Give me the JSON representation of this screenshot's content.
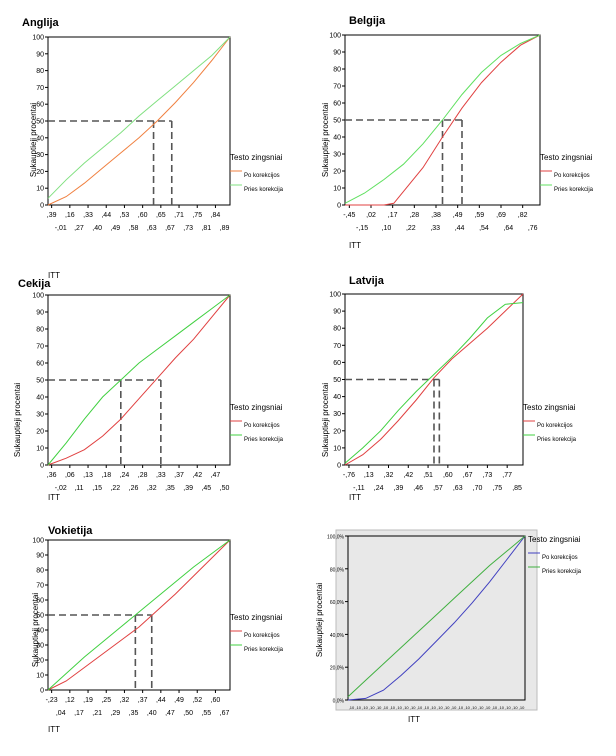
{
  "chart_data": [
    {
      "type": "line",
      "title": "Anglija",
      "ylabel": "Sukauptieji procentai",
      "xlabel": "ITT",
      "ylim": [
        0,
        100
      ],
      "yticks": [
        0,
        10,
        20,
        30,
        40,
        50,
        60,
        70,
        80,
        90,
        100
      ],
      "xticks_top": [
        ",39",
        ",16",
        ",33",
        ",44",
        ",53",
        ",60",
        ",65",
        ",71",
        ",75",
        ",84"
      ],
      "xticks_bottom": [
        "-,01",
        ",27",
        ",40",
        ",49",
        ",58",
        ",63",
        ",67",
        ",73",
        ",81",
        ",89"
      ],
      "legend_title": "Testo zingsniai",
      "series": [
        {
          "name": "Po korekcijos",
          "color": "#f08040",
          "x": [
            0,
            0.1,
            0.2,
            0.3,
            0.4,
            0.5,
            0.6,
            0.7,
            0.8,
            0.9,
            1
          ],
          "values": [
            0,
            5,
            13,
            22,
            31,
            40,
            50,
            61,
            73,
            86,
            100
          ]
        },
        {
          "name": "Pries korekcija",
          "color": "#80e080",
          "x": [
            0,
            0.1,
            0.2,
            0.3,
            0.4,
            0.5,
            0.6,
            0.7,
            0.8,
            0.9,
            1
          ],
          "values": [
            4,
            15,
            25,
            34,
            43,
            53,
            62,
            71,
            80,
            89,
            100
          ]
        }
      ],
      "median_x": [
        0.58,
        0.68
      ],
      "median_y": 50
    },
    {
      "type": "line",
      "title": "Belgija",
      "ylabel": "Sukauptieji procentai",
      "xlabel": "ITT",
      "ylim": [
        0,
        100
      ],
      "yticks": [
        0,
        10,
        20,
        30,
        40,
        50,
        60,
        70,
        80,
        90,
        100
      ],
      "xticks_top": [
        "-,45",
        ",02",
        ",17",
        ",28",
        ",38",
        ",49",
        ",59",
        ",69",
        ",82"
      ],
      "xticks_bottom": [
        "-,15",
        ",10",
        ",22",
        ",33",
        ",44",
        ",54",
        ",64",
        ",76"
      ],
      "legend_title": "Testo zingsniai",
      "series": [
        {
          "name": "Po korekcijos",
          "color": "#e04040",
          "x": [
            0,
            0.1,
            0.2,
            0.25,
            0.3,
            0.4,
            0.5,
            0.6,
            0.7,
            0.8,
            0.9,
            1
          ],
          "values": [
            0,
            0,
            0,
            1,
            8,
            22,
            40,
            57,
            72,
            84,
            94,
            100
          ]
        },
        {
          "name": "Pries korekcija",
          "color": "#60e060",
          "x": [
            0,
            0.1,
            0.2,
            0.3,
            0.4,
            0.5,
            0.6,
            0.7,
            0.8,
            0.9,
            1
          ],
          "values": [
            1,
            7,
            15,
            24,
            36,
            50,
            65,
            78,
            88,
            95,
            100
          ]
        }
      ],
      "median_x": [
        0.5,
        0.6
      ],
      "median_y": 50
    },
    {
      "type": "line",
      "title": "Cekija",
      "ylabel": "Sukauptieji procentai",
      "xlabel": "ITT",
      "ylim": [
        0,
        100
      ],
      "yticks": [
        0,
        10,
        20,
        30,
        40,
        50,
        60,
        70,
        80,
        90,
        100
      ],
      "xticks_top": [
        ",36",
        ",06",
        ",13",
        ",18",
        ",24",
        ",28",
        ",33",
        ",37",
        ",42",
        ",47"
      ],
      "xticks_bottom": [
        "-,02",
        ",11",
        ",15",
        ",22",
        ",26",
        ",32",
        ",35",
        ",39",
        ",45",
        ",50"
      ],
      "legend_title": "Testo zingsniai",
      "series": [
        {
          "name": "Po korekcijos",
          "color": "#e04040",
          "x": [
            0,
            0.1,
            0.2,
            0.3,
            0.4,
            0.5,
            0.6,
            0.7,
            0.8,
            0.9,
            1
          ],
          "values": [
            0,
            4,
            9,
            17,
            27,
            39,
            51,
            63,
            74,
            87,
            100
          ]
        },
        {
          "name": "Pries korekcija",
          "color": "#40d040",
          "x": [
            0,
            0.1,
            0.2,
            0.3,
            0.4,
            0.5,
            0.6,
            0.7,
            0.8,
            0.9,
            1
          ],
          "values": [
            0,
            13,
            27,
            40,
            50,
            60,
            68,
            76,
            84,
            92,
            100
          ]
        }
      ],
      "median_x": [
        0.4,
        0.62
      ],
      "median_y": 50
    },
    {
      "type": "line",
      "title": "Latvija",
      "ylabel": "Sukauptieji procentai",
      "xlabel": "ITT",
      "ylim": [
        0,
        100
      ],
      "yticks": [
        0,
        10,
        20,
        30,
        40,
        50,
        60,
        70,
        80,
        90,
        100
      ],
      "xticks_top": [
        "-,76",
        ",13",
        ",32",
        ",42",
        ",51",
        ",60",
        ",67",
        ",73",
        ",77"
      ],
      "xticks_bottom": [
        "-,11",
        ",24",
        ",39",
        ",46",
        ",57",
        ",63",
        ",70",
        ",75",
        ",85"
      ],
      "legend_title": "Testo zingsniai",
      "series": [
        {
          "name": "Po korekcijos",
          "color": "#e04040",
          "x": [
            0,
            0.1,
            0.2,
            0.3,
            0.4,
            0.5,
            0.6,
            0.7,
            0.8,
            0.9,
            1
          ],
          "values": [
            0,
            6,
            15,
            26,
            38,
            51,
            62,
            71,
            80,
            90,
            100
          ]
        },
        {
          "name": "Pries korekcija",
          "color": "#40d040",
          "x": [
            0,
            0.1,
            0.2,
            0.3,
            0.4,
            0.5,
            0.6,
            0.7,
            0.8,
            0.9,
            1
          ],
          "values": [
            1,
            10,
            20,
            32,
            43,
            53,
            63,
            74,
            86,
            94,
            95
          ]
        }
      ],
      "median_x": [
        0.5,
        0.53
      ],
      "median_y": 50
    },
    {
      "type": "line",
      "title": "Vokietija",
      "ylabel": "Sukauptieji procentai",
      "xlabel": "ITT",
      "ylim": [
        0,
        100
      ],
      "yticks": [
        0,
        10,
        20,
        30,
        40,
        50,
        60,
        70,
        80,
        90,
        100
      ],
      "xticks_top": [
        "-,23",
        ",12",
        ",19",
        ",25",
        ",32",
        ",37",
        ",44",
        ",49",
        ",52",
        ",60"
      ],
      "xticks_bottom": [
        ",04",
        ",17",
        ",21",
        ",29",
        ",35",
        ",40",
        ",47",
        ",50",
        ",55",
        ",67"
      ],
      "legend_title": "Testo zingsniai",
      "series": [
        {
          "name": "Po korekcijos",
          "color": "#e04040",
          "x": [
            0,
            0.1,
            0.2,
            0.3,
            0.4,
            0.5,
            0.6,
            0.7,
            0.8,
            0.9,
            1
          ],
          "values": [
            0,
            6,
            15,
            24,
            33,
            42,
            53,
            64,
            76,
            88,
            100
          ]
        },
        {
          "name": "Pries korekcija",
          "color": "#40d040",
          "x": [
            0,
            0.1,
            0.2,
            0.3,
            0.4,
            0.5,
            0.6,
            0.7,
            0.8,
            0.9,
            1
          ],
          "values": [
            0,
            11,
            22,
            32,
            42,
            52,
            62,
            72,
            82,
            91,
            100
          ]
        }
      ],
      "median_x": [
        0.48,
        0.57
      ],
      "median_y": 50
    },
    {
      "type": "line",
      "title": "",
      "ylabel": "Sukauptieji procentai",
      "xlabel": "ITT",
      "ylim": [
        0,
        100
      ],
      "yticks": [
        "0,0%",
        "20,0%",
        "40,0%",
        "60,0%",
        "80,0%",
        "100,0%"
      ],
      "legend_title": "Testo zingsniai",
      "series": [
        {
          "name": "Po korekcijos",
          "color": "#4040c0",
          "x": [
            0,
            0.1,
            0.2,
            0.3,
            0.4,
            0.5,
            0.6,
            0.7,
            0.8,
            0.9,
            1
          ],
          "values": [
            0,
            1,
            6,
            15,
            25,
            36,
            47,
            59,
            72,
            86,
            100
          ]
        },
        {
          "name": "Pries korekcija",
          "color": "#40b040",
          "x": [
            0,
            0.1,
            0.2,
            0.3,
            0.4,
            0.5,
            0.6,
            0.7,
            0.8,
            0.9,
            1
          ],
          "values": [
            2,
            12,
            22,
            32,
            42,
            52,
            62,
            72,
            82,
            91,
            100
          ]
        }
      ],
      "background": "#e8e8e8"
    }
  ]
}
